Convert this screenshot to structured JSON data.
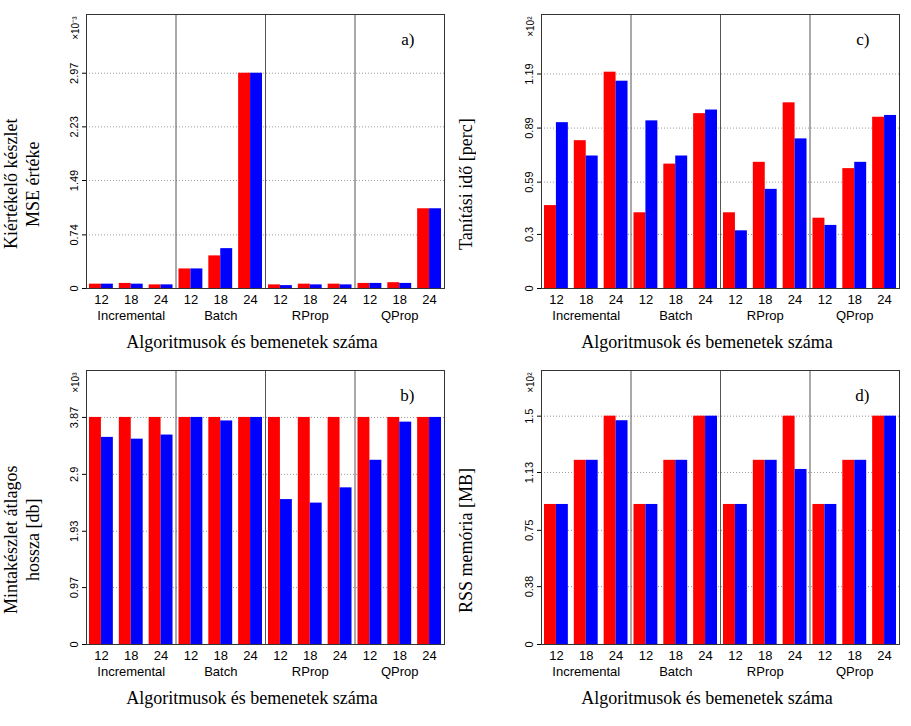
{
  "chart_data": [
    {
      "type": "bar",
      "panel_label": "a)",
      "ylabel": [
        "Kiértékelő készlet",
        "MSE értéke"
      ],
      "y_multiplier": "×10⁻³",
      "xlabel": "Algoritmusok és bemenetek száma",
      "groups": [
        "Incremental",
        "Batch",
        "RProp",
        "QProp"
      ],
      "categories": [
        "12",
        "18",
        "24",
        "12",
        "18",
        "24",
        "12",
        "18",
        "24",
        "12",
        "18",
        "24"
      ],
      "series": [
        {
          "color": "#ff0000",
          "values": [
            0.06,
            0.07,
            0.05,
            0.27,
            0.45,
            2.97,
            0.05,
            0.06,
            0.06,
            0.07,
            0.08,
            1.1
          ]
        },
        {
          "color": "#0000ff",
          "values": [
            0.06,
            0.06,
            0.05,
            0.27,
            0.55,
            2.97,
            0.04,
            0.05,
            0.05,
            0.07,
            0.07,
            1.1
          ]
        }
      ],
      "ylim": [
        0,
        3.78
      ],
      "yticks": [
        0,
        0.74,
        1.49,
        2.23,
        2.97
      ],
      "grid": true
    },
    {
      "type": "bar",
      "panel_label": "c)",
      "ylabel": [
        "Tanítási idő [perc]"
      ],
      "y_multiplier": "×10²",
      "xlabel": "Algoritmusok és bemenetek száma",
      "groups": [
        "Incremental",
        "Batch",
        "RProp",
        "QProp"
      ],
      "categories": [
        "12",
        "18",
        "24",
        "12",
        "18",
        "24",
        "12",
        "18",
        "24",
        "12",
        "18",
        "24"
      ],
      "series": [
        {
          "color": "#ff0000",
          "values": [
            0.46,
            0.82,
            1.2,
            0.42,
            0.69,
            0.97,
            0.42,
            0.7,
            1.03,
            0.39,
            0.665,
            0.95
          ]
        },
        {
          "color": "#0000ff",
          "values": [
            0.92,
            0.735,
            1.15,
            0.93,
            0.735,
            0.99,
            0.32,
            0.55,
            0.83,
            0.35,
            0.7,
            0.96
          ]
        }
      ],
      "ylim": [
        0,
        1.52
      ],
      "yticks": [
        0,
        0.3,
        0.59,
        0.89,
        1.19
      ],
      "grid": true
    },
    {
      "type": "bar",
      "panel_label": "b)",
      "ylabel": [
        "Mintakészlet átlagos",
        "hossza [db]"
      ],
      "y_multiplier": "×10³",
      "xlabel": "Algoritmusok és bemenetek száma",
      "groups": [
        "Incremental",
        "Batch",
        "RProp",
        "QProp"
      ],
      "categories": [
        "12",
        "18",
        "24",
        "12",
        "18",
        "24",
        "12",
        "18",
        "24",
        "12",
        "18",
        "24"
      ],
      "series": [
        {
          "color": "#ff0000",
          "values": [
            3.87,
            3.87,
            3.87,
            3.87,
            3.87,
            3.87,
            3.87,
            3.87,
            3.87,
            3.87,
            3.87,
            3.87
          ]
        },
        {
          "color": "#0000ff",
          "values": [
            3.53,
            3.5,
            3.57,
            3.87,
            3.81,
            3.87,
            2.47,
            2.41,
            2.67,
            3.14,
            3.79,
            3.87
          ]
        }
      ],
      "ylim": [
        0,
        4.67
      ],
      "yticks": [
        0,
        0.97,
        1.93,
        2.9,
        3.87
      ],
      "grid": true
    },
    {
      "type": "bar",
      "panel_label": "d)",
      "ylabel": [
        "RSS memória [MB]"
      ],
      "y_multiplier": "×10²",
      "xlabel": "Algoritmusok és bemenetek száma",
      "groups": [
        "Incremental",
        "Batch",
        "RProp",
        "QProp"
      ],
      "categories": [
        "12",
        "18",
        "24",
        "12",
        "18",
        "24",
        "12",
        "18",
        "24",
        "12",
        "18",
        "24"
      ],
      "series": [
        {
          "color": "#ff0000",
          "values": [
            0.92,
            1.21,
            1.5,
            0.92,
            1.21,
            1.5,
            0.92,
            1.21,
            1.5,
            0.92,
            1.21,
            1.5
          ]
        },
        {
          "color": "#0000ff",
          "values": [
            0.92,
            1.21,
            1.47,
            0.92,
            1.21,
            1.5,
            0.92,
            1.21,
            1.15,
            0.92,
            1.21,
            1.5
          ]
        }
      ],
      "ylim": [
        0,
        1.8
      ],
      "yticks": [
        0,
        0.38,
        0.75,
        1.13,
        1.5
      ],
      "grid": true
    }
  ]
}
